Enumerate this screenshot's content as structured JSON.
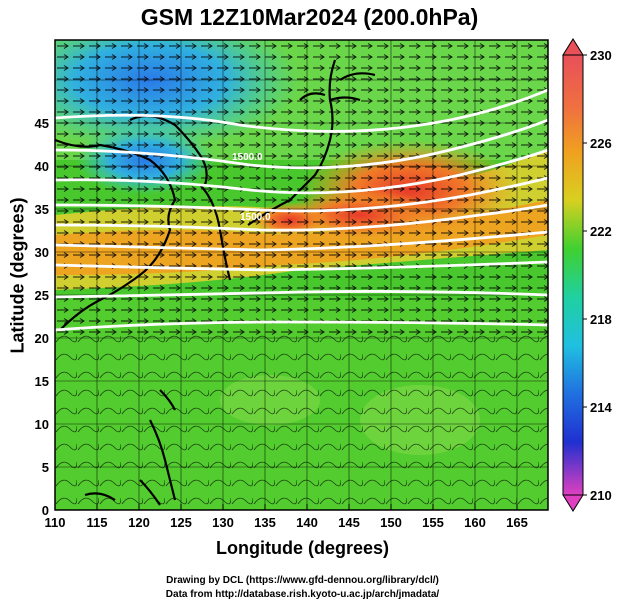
{
  "title": "GSM 12Z10Mar2024 (200.0hPa)",
  "xlabel": "Longitude (degrees)",
  "ylabel": "Latitude  (degrees)",
  "credits": {
    "line1": "Drawing by DCL (https://www.gfd-dennou.org/library/dcl/)",
    "line2": "Data from http://database.rish.kyoto-u.ac.jp/arch/jmadata/"
  },
  "map": {
    "x_ticks": [
      "110",
      "115",
      "120",
      "125",
      "130",
      "135",
      "140",
      "145",
      "150",
      "155",
      "160",
      "165"
    ],
    "y_ticks": [
      "0",
      "5",
      "10",
      "15",
      "20",
      "25",
      "30",
      "35",
      "40",
      "45"
    ],
    "colorbar_ticks": [
      "230",
      "226",
      "222",
      "218",
      "214",
      "210"
    ],
    "contour_labels": [
      "1500.0",
      "1500.0"
    ],
    "colors": {
      "colorbar_top": "#e8505a",
      "colorbar_226": "#f0a020",
      "colorbar_222": "#40d030",
      "colorbar_218": "#20c0e0",
      "colorbar_214": "#2030d0",
      "colorbar_bottom": "#e040c0"
    }
  }
}
